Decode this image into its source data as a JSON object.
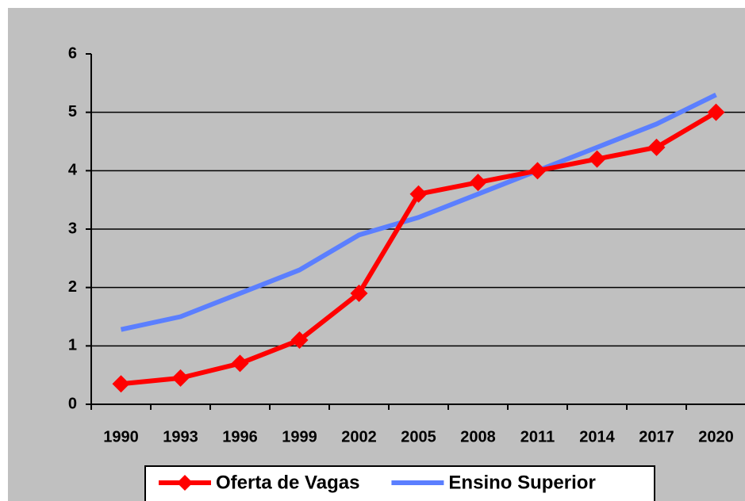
{
  "chart_data": {
    "type": "line",
    "categories": [
      "1990",
      "1993",
      "1996",
      "1999",
      "2002",
      "2005",
      "2008",
      "2011",
      "2014",
      "2017",
      "2020"
    ],
    "series": [
      {
        "name": "Oferta de Vagas",
        "color": "#ff0000",
        "marker": "diamond",
        "values": [
          0.35,
          0.45,
          0.7,
          1.1,
          1.9,
          3.6,
          3.8,
          4.0,
          4.2,
          4.4,
          5.0
        ]
      },
      {
        "name": "Ensino Superior",
        "color": "#5b7fff",
        "values": [
          1.28,
          1.5,
          1.9,
          2.3,
          2.9,
          3.2,
          3.6,
          4.0,
          4.4,
          4.8,
          5.3
        ]
      }
    ],
    "ylim": [
      0,
      6
    ],
    "yticks": [
      0,
      1,
      2,
      3,
      4,
      5,
      6
    ],
    "grid": true,
    "legend": "bottom"
  }
}
